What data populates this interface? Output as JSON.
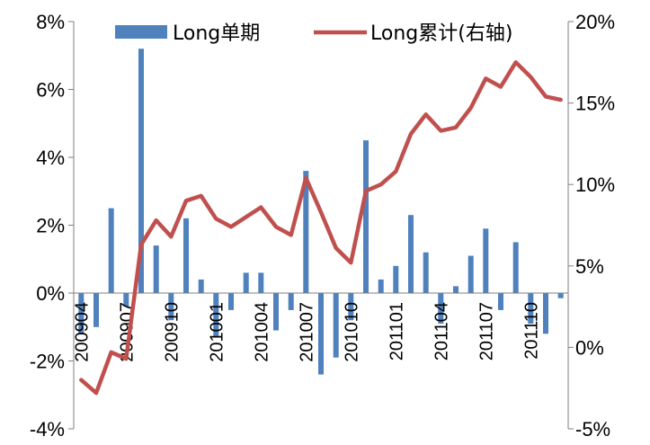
{
  "chart_data": {
    "type": "bar+line",
    "legend": {
      "placement": "top",
      "bar_label": "Long单期",
      "line_label": "Long累计(右轴)"
    },
    "colors": {
      "bar": "#4f81bd",
      "line": "#c0504d"
    },
    "x": [
      "200904",
      "200905",
      "200906",
      "200907",
      "200908",
      "200909",
      "200910",
      "200911",
      "200912",
      "201001",
      "201002",
      "201003",
      "201004",
      "201005",
      "201006",
      "201007",
      "201008",
      "201009",
      "201010",
      "201011",
      "201012",
      "201101",
      "201102",
      "201103",
      "201104",
      "201105",
      "201106",
      "201107",
      "201108",
      "201109",
      "201110",
      "201111",
      "201112"
    ],
    "x_tick_labels": [
      "200904",
      "200907",
      "200910",
      "201001",
      "201004",
      "201007",
      "201010",
      "201101",
      "201104",
      "201107",
      "201110"
    ],
    "series": [
      {
        "name": "Long单期",
        "type": "bar",
        "axis": "left",
        "values": [
          -1.2,
          -1.0,
          2.5,
          -0.4,
          7.2,
          1.4,
          -0.8,
          2.2,
          0.4,
          -1.3,
          -0.5,
          0.6,
          0.6,
          -1.1,
          -0.5,
          3.6,
          -2.4,
          -1.9,
          -0.8,
          4.5,
          0.4,
          0.8,
          2.3,
          1.2,
          -0.9,
          0.2,
          1.1,
          1.9,
          -0.5,
          1.5,
          -0.9,
          -1.2,
          -0.15
        ]
      },
      {
        "name": "Long累计(右轴)",
        "type": "line",
        "axis": "right",
        "values": [
          -2.0,
          -2.8,
          -0.3,
          -0.7,
          6.3,
          7.8,
          6.8,
          9.0,
          9.3,
          7.9,
          7.4,
          8.0,
          8.6,
          7.4,
          6.9,
          10.4,
          8.3,
          6.1,
          5.2,
          9.6,
          10.0,
          10.8,
          13.1,
          14.3,
          13.3,
          13.5,
          14.7,
          16.5,
          16.0,
          17.5,
          16.6,
          15.4,
          15.2
        ]
      }
    ],
    "y_left": {
      "min": -4,
      "max": 8,
      "ticks": [
        "-4%",
        "-2%",
        "0%",
        "2%",
        "4%",
        "6%",
        "8%"
      ]
    },
    "y_right": {
      "min": -5,
      "max": 20,
      "ticks": [
        "-5%",
        "0%",
        "5%",
        "10%",
        "15%",
        "20%"
      ]
    },
    "grid": false
  }
}
